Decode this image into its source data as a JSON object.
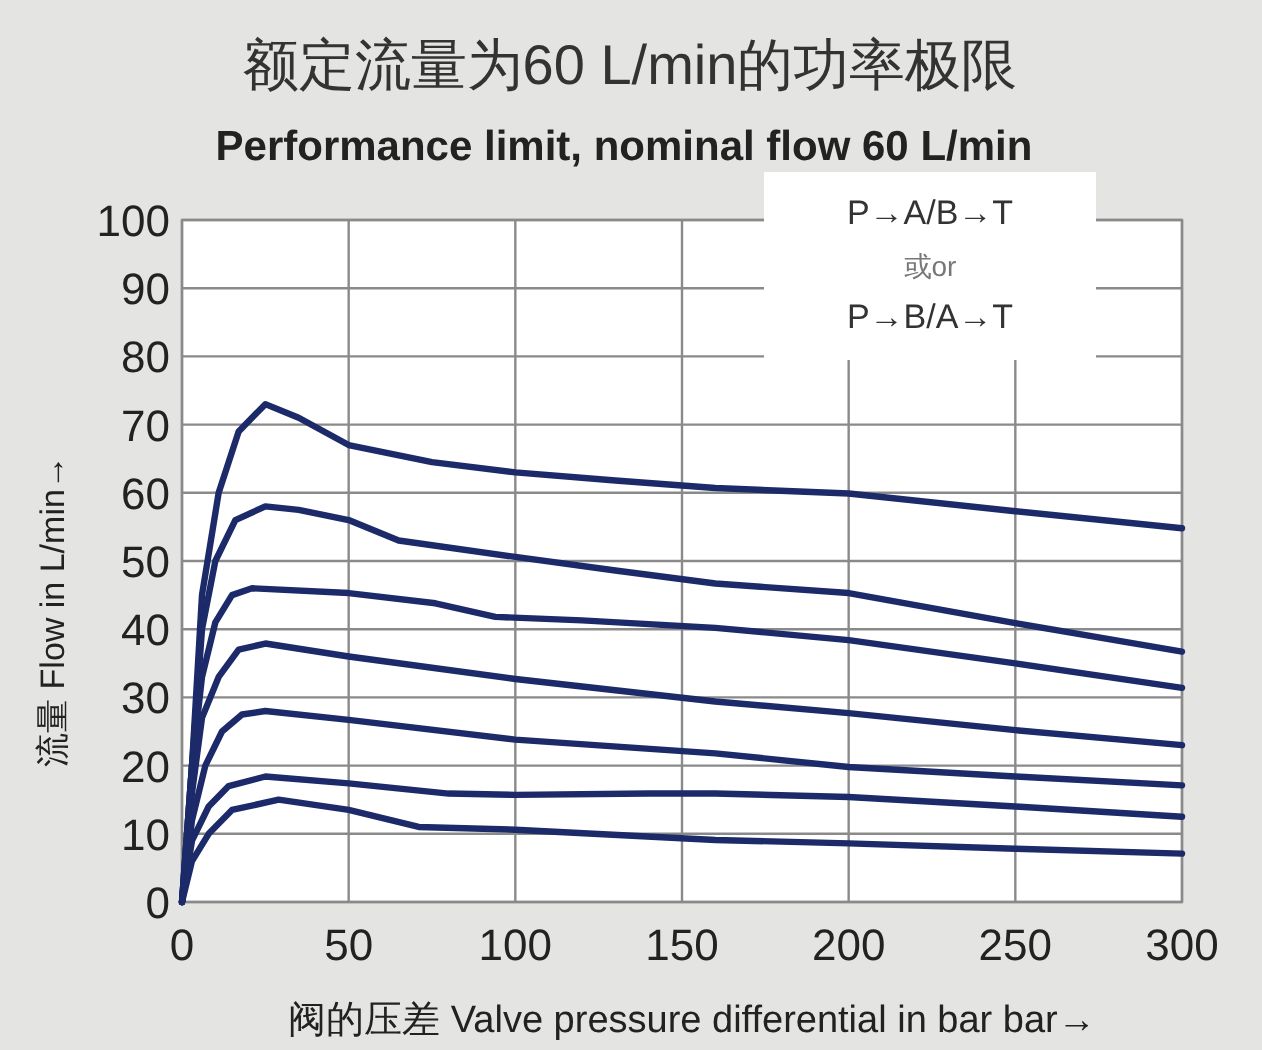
{
  "chart_data": {
    "type": "line",
    "title": "额定流量为60 L/min的功率极限",
    "subtitle": "Performance limit, nominal flow 60 L/min",
    "xlabel": "阀的压差 Valve pressure differential in bar bar→",
    "ylabel": "流量 Flow in L/min→",
    "annotations": [
      "P→A/B→T",
      "或or",
      "P→B/A→T"
    ],
    "xlim": [
      0,
      300
    ],
    "ylim": [
      0,
      100
    ],
    "xticks": [
      0,
      50,
      100,
      150,
      200,
      250,
      300
    ],
    "yticks": [
      0,
      10,
      20,
      30,
      40,
      50,
      60,
      70,
      80,
      90,
      100
    ],
    "grid": true,
    "marker": "none",
    "line_style": "solid",
    "series": [
      {
        "color": "#1c2a6a",
        "x": [
          0,
          3,
          6,
          11,
          17,
          25,
          35,
          50,
          75,
          100,
          130,
          160,
          200,
          250,
          300
        ],
        "values": [
          0,
          20,
          45,
          60,
          69,
          73,
          71,
          67,
          64.5,
          63,
          61.8,
          60.7,
          59.9,
          57.3,
          54.8
        ]
      },
      {
        "color": "#1c2a6a",
        "x": [
          0,
          3,
          6,
          10,
          16,
          25,
          35,
          50,
          65,
          100,
          130,
          160,
          200,
          250,
          300
        ],
        "values": [
          0,
          20,
          40,
          50,
          56,
          58,
          57.5,
          56,
          53,
          50.6,
          48.6,
          46.7,
          45.3,
          40.9,
          36.7
        ]
      },
      {
        "color": "#1c2a6a",
        "x": [
          0,
          3,
          6,
          10,
          15,
          21,
          50,
          76,
          94,
          120,
          160,
          200,
          250,
          300
        ],
        "values": [
          0,
          20,
          33,
          41,
          45,
          46,
          45.3,
          43.8,
          41.8,
          41.3,
          40.2,
          38.4,
          35,
          31.4
        ]
      },
      {
        "color": "#1c2a6a",
        "x": [
          0,
          3,
          6,
          11,
          17,
          25,
          50,
          100,
          160,
          200,
          250,
          300
        ],
        "values": [
          0,
          16,
          27,
          33,
          37,
          37.9,
          36,
          32.7,
          29.4,
          27.7,
          25.2,
          23
        ]
      },
      {
        "color": "#1c2a6a",
        "x": [
          0,
          3,
          7,
          12,
          18,
          25,
          50,
          100,
          160,
          200,
          250,
          300
        ],
        "values": [
          0,
          12,
          20,
          25,
          27.5,
          28,
          26.7,
          23.8,
          21.8,
          19.8,
          18.4,
          17.1
        ]
      },
      {
        "color": "#1c2a6a",
        "x": [
          0,
          3,
          8,
          14,
          25,
          50,
          80,
          100,
          140,
          160,
          200,
          250,
          300
        ],
        "values": [
          0,
          9,
          14,
          17,
          18.4,
          17.4,
          15.9,
          15.7,
          15.9,
          15.9,
          15.4,
          14,
          12.5
        ]
      },
      {
        "color": "#1c2a6a",
        "x": [
          0,
          3,
          8,
          15,
          29,
          50,
          71,
          100,
          160,
          200,
          250,
          300
        ],
        "values": [
          0,
          6,
          10,
          13.5,
          15,
          13.5,
          11,
          10.6,
          9.1,
          8.6,
          7.8,
          7.1
        ]
      }
    ]
  }
}
